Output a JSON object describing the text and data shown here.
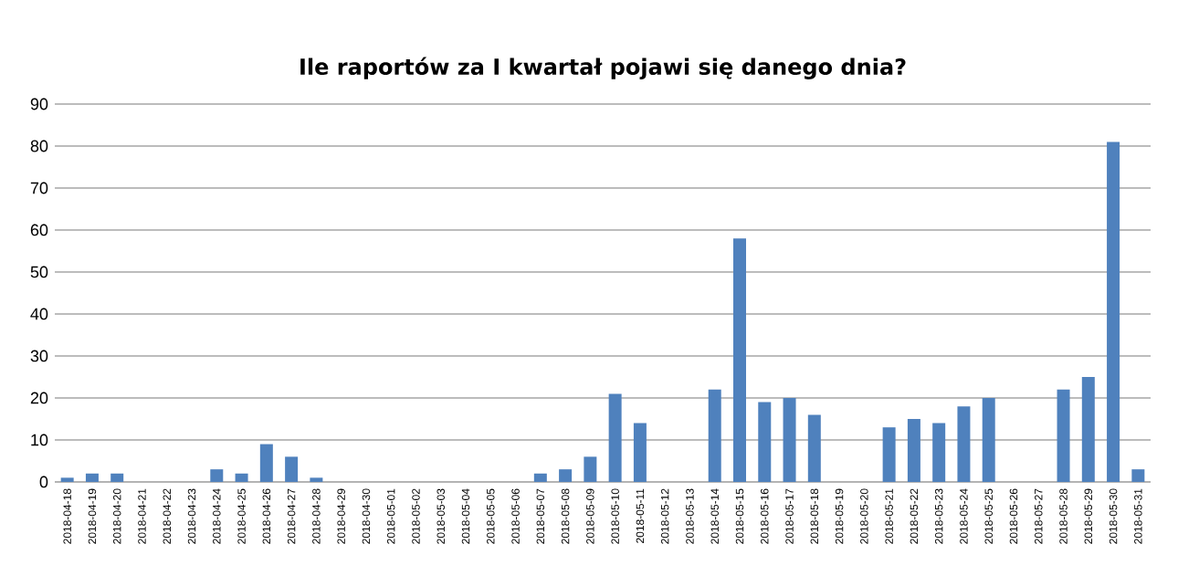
{
  "chart_data": {
    "type": "bar",
    "title": "Ile raportów za I kwartał pojawi się danego dnia?",
    "categories": [
      "2018-04-18",
      "2018-04-19",
      "2018-04-20",
      "2018-04-21",
      "2018-04-22",
      "2018-04-23",
      "2018-04-24",
      "2018-04-25",
      "2018-04-26",
      "2018-04-27",
      "2018-04-28",
      "2018-04-29",
      "2018-04-30",
      "2018-05-01",
      "2018-05-02",
      "2018-05-03",
      "2018-05-04",
      "2018-05-05",
      "2018-05-06",
      "2018-05-07",
      "2018-05-08",
      "2018-05-09",
      "2018-05-10",
      "2018-05-11",
      "2018-05-12",
      "2018-05-13",
      "2018-05-14",
      "2018-05-15",
      "2018-05-16",
      "2018-05-17",
      "2018-05-18",
      "2018-05-19",
      "2018-05-20",
      "2018-05-21",
      "2018-05-22",
      "2018-05-23",
      "2018-05-24",
      "2018-05-25",
      "2018-05-26",
      "2018-05-27",
      "2018-05-28",
      "2018-05-29",
      "2018-05-30",
      "2018-05-31"
    ],
    "values": [
      1,
      2,
      2,
      0,
      0,
      0,
      3,
      2,
      9,
      6,
      1,
      0,
      0,
      0,
      0,
      0,
      0,
      0,
      0,
      2,
      3,
      6,
      21,
      14,
      0,
      0,
      22,
      58,
      19,
      20,
      16,
      0,
      0,
      13,
      15,
      14,
      18,
      20,
      0,
      0,
      22,
      25,
      81,
      3
    ],
    "color": "#4f81bd",
    "ylim": [
      0,
      90
    ],
    "yticks": [
      0,
      10,
      20,
      30,
      40,
      50,
      60,
      70,
      80,
      90
    ],
    "grid": "y"
  }
}
